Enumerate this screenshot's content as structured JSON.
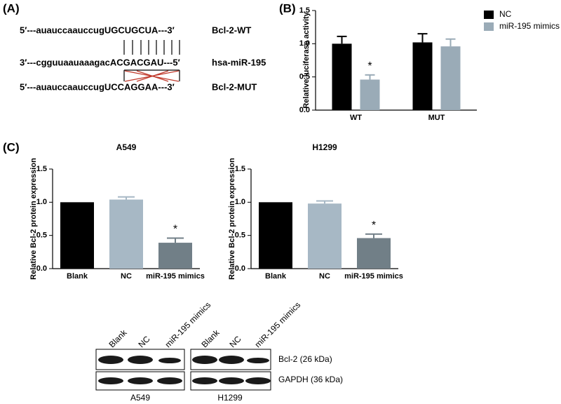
{
  "panel_a": {
    "label": "(A)",
    "rows": [
      {
        "sequence": "5′---auauccaauccugUGCUGCUA---3′",
        "name": "Bcl-2-WT"
      },
      {
        "sequence": "3′---cgguuaauaaagacACGACGAU---5′",
        "name": "hsa-miR-195"
      },
      {
        "sequence": "5′---auauccaauccugUCCAGGAA---3′",
        "name": "Bcl-2-MUT"
      }
    ]
  },
  "panel_b_label": "(B)",
  "panel_c_label": "(C)",
  "chart_data": [
    {
      "type": "bar",
      "ylabel": "Relative luciferase activity",
      "categories": [
        "WT",
        "MUT"
      ],
      "series": [
        {
          "name": "NC",
          "color": "#000000",
          "values": [
            1.0,
            1.02
          ],
          "errors": [
            0.11,
            0.13
          ],
          "marks": [
            null,
            null
          ]
        },
        {
          "name": "miR-195 mimics",
          "color": "#9aabb7",
          "values": [
            0.46,
            0.96
          ],
          "errors": [
            0.07,
            0.11
          ],
          "marks": [
            "*",
            null
          ]
        }
      ],
      "ylim": [
        0,
        1.5
      ],
      "yticks": [
        {
          "value": 0,
          "label": "0.0"
        },
        {
          "value": 0.5,
          "label": "0.5"
        },
        {
          "value": 1,
          "label": "1.0"
        },
        {
          "value": 1.5,
          "label": "1.5"
        }
      ],
      "legend": "outside-right"
    },
    {
      "type": "bar",
      "title": "A549",
      "ylabel": "Relative Bcl-2 protein expression",
      "categories": [
        "Blank",
        "NC",
        "miR-195 mimics"
      ],
      "values": [
        1.0,
        1.04,
        0.39
      ],
      "errors": [
        null,
        0.04,
        0.07
      ],
      "colors": [
        "#000000",
        "#a7b8c5",
        "#717f87"
      ],
      "marks": [
        null,
        null,
        "*"
      ],
      "ylim": [
        0,
        1.5
      ],
      "yticks": [
        {
          "value": 0,
          "label": "0.0"
        },
        {
          "value": 0.5,
          "label": "0.5"
        },
        {
          "value": 1,
          "label": "1.0"
        },
        {
          "value": 1.5,
          "label": "1.5"
        }
      ]
    },
    {
      "type": "bar",
      "title": "H1299",
      "ylabel": "Relative Bcl-2 protein expression",
      "categories": [
        "Blank",
        "NC",
        "miR-195 mimics"
      ],
      "values": [
        1.0,
        0.98,
        0.46
      ],
      "errors": [
        null,
        0.04,
        0.06
      ],
      "colors": [
        "#000000",
        "#a7b8c5",
        "#717f87"
      ],
      "marks": [
        null,
        null,
        "*"
      ],
      "ylim": [
        0,
        1.5
      ],
      "yticks": [
        {
          "value": 0,
          "label": "0.0"
        },
        {
          "value": 0.5,
          "label": "0.5"
        },
        {
          "value": 1,
          "label": "1.0"
        },
        {
          "value": 1.5,
          "label": "1.5"
        }
      ]
    }
  ],
  "blot": {
    "lanes": [
      "Blank",
      "NC",
      "miR-195 mimics"
    ],
    "rows": [
      "Bcl-2 (26 kDa)",
      "GAPDH (36 kDa)"
    ],
    "cell_lines": [
      "A549",
      "H1299"
    ]
  }
}
